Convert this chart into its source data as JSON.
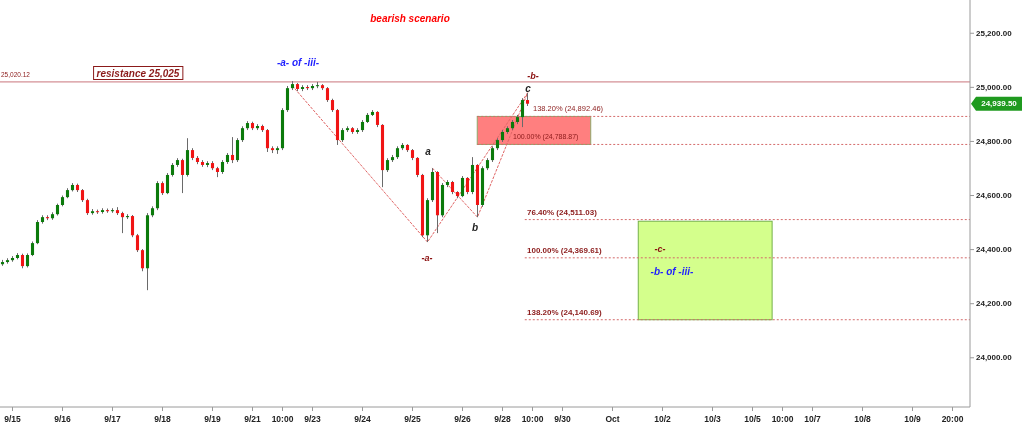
{
  "chart_data": {
    "type": "candlestick",
    "title": "bearish scenario",
    "categories": [
      null,
      null,
      "9/15",
      null,
      null,
      null,
      null,
      null,
      null,
      null,
      null,
      null,
      "9/16",
      null,
      null,
      null,
      null,
      null,
      null,
      null,
      null,
      null,
      "9/17",
      null,
      null,
      null,
      null,
      null,
      null,
      null,
      null,
      null,
      "9/18",
      null,
      null,
      null,
      null,
      null,
      null,
      null,
      null,
      null,
      "9/19",
      null,
      null,
      null,
      null,
      null,
      null,
      null,
      "9/21",
      null,
      null,
      null,
      null,
      null,
      "10:00",
      null,
      null,
      null,
      null,
      null,
      "9/23",
      null,
      null,
      null,
      null,
      null,
      null,
      null,
      null,
      null,
      "9/24",
      null,
      null,
      null,
      null,
      null,
      null,
      null,
      null,
      null,
      "9/25",
      null,
      null,
      null,
      null,
      null,
      null,
      null,
      null,
      null,
      "9/26",
      null,
      null,
      null,
      null,
      null,
      null,
      null,
      "9/28",
      null,
      null,
      null,
      null,
      null,
      "10:00",
      null,
      null,
      null,
      null,
      null,
      "9/30",
      null,
      null,
      null,
      null,
      null,
      null,
      null,
      null,
      null,
      "Oct",
      null,
      null,
      null,
      null,
      null,
      null,
      null,
      null,
      null,
      "10/2",
      null,
      null,
      null,
      null,
      null,
      null,
      null,
      null,
      null,
      "10/3",
      null,
      null,
      null,
      null,
      null,
      null,
      null,
      "10/5",
      null,
      null,
      null,
      null,
      null,
      "10:00",
      null,
      null,
      null,
      null,
      null,
      "10/7",
      null,
      null,
      null,
      null,
      null,
      null,
      null,
      null,
      null,
      "10/8",
      null,
      null,
      null,
      null,
      null,
      null,
      null,
      null,
      null,
      "10/9",
      null,
      null,
      null,
      null,
      null,
      null,
      null,
      "20:00",
      null,
      null,
      null
    ],
    "ohlc": [
      [
        24346,
        24362,
        24340,
        24354
      ],
      [
        24354,
        24368,
        24348,
        24361
      ],
      [
        24361,
        24376,
        24355,
        24369
      ],
      [
        24369,
        24387,
        24364,
        24380
      ],
      [
        24380,
        24385,
        24331,
        24339
      ],
      [
        24339,
        24386,
        24334,
        24380
      ],
      [
        24380,
        24430,
        24376,
        24424
      ],
      [
        24424,
        24509,
        24420,
        24502
      ],
      [
        24502,
        24527,
        24496,
        24520
      ],
      [
        24520,
        24527,
        24509,
        24516
      ],
      [
        24516,
        24538,
        24510,
        24531
      ],
      [
        24531,
        24570,
        24526,
        24565
      ],
      [
        24565,
        24600,
        24560,
        24594
      ],
      [
        24594,
        24627,
        24590,
        24620
      ],
      [
        24620,
        24646,
        24615,
        24639
      ],
      [
        24639,
        24644,
        24613,
        24620
      ],
      [
        24620,
        24624,
        24576,
        24583
      ],
      [
        24583,
        24588,
        24528,
        24535
      ],
      [
        24535,
        24550,
        24529,
        24542
      ],
      [
        24542,
        24548,
        24532,
        24539
      ],
      [
        24539,
        24553,
        24533,
        24546
      ],
      [
        24546,
        24552,
        24536,
        24542
      ],
      [
        24542,
        24553,
        24536,
        24546
      ],
      [
        24546,
        24557,
        24528,
        24535
      ],
      [
        24535,
        24540,
        24461,
        24520
      ],
      [
        24520,
        24531,
        24513,
        24524
      ],
      [
        24524,
        24528,
        24446,
        24453
      ],
      [
        24453,
        24458,
        24391,
        24398
      ],
      [
        24398,
        24402,
        24320,
        24331
      ],
      [
        24331,
        24535,
        24250,
        24527
      ],
      [
        24527,
        24560,
        24520,
        24553
      ],
      [
        24553,
        24653,
        24546,
        24646
      ],
      [
        24646,
        24652,
        24602,
        24609
      ],
      [
        24609,
        24683,
        24605,
        24676
      ],
      [
        24676,
        24720,
        24670,
        24713
      ],
      [
        24713,
        24738,
        24706,
        24731
      ],
      [
        24731,
        24736,
        24609,
        24676
      ],
      [
        24676,
        24812,
        24670,
        24768
      ],
      [
        24768,
        24775,
        24731,
        24739
      ],
      [
        24739,
        24746,
        24716,
        24724
      ],
      [
        24724,
        24731,
        24706,
        24713
      ],
      [
        24713,
        24727,
        24705,
        24720
      ],
      [
        24720,
        24727,
        24694,
        24701
      ],
      [
        24701,
        24706,
        24668,
        24687
      ],
      [
        24687,
        24731,
        24680,
        24724
      ],
      [
        24724,
        24757,
        24717,
        24750
      ],
      [
        24750,
        24816,
        24720,
        24731
      ],
      [
        24731,
        24812,
        24724,
        24805
      ],
      [
        24805,
        24856,
        24798,
        24849
      ],
      [
        24849,
        24875,
        24842,
        24868
      ],
      [
        24868,
        24873,
        24842,
        24849
      ],
      [
        24849,
        24864,
        24842,
        24857
      ],
      [
        24857,
        24862,
        24835,
        24842
      ],
      [
        24842,
        24846,
        24761,
        24775
      ],
      [
        24775,
        24782,
        24757,
        24768
      ],
      [
        24768,
        24782,
        24754,
        24775
      ],
      [
        24775,
        24923,
        24768,
        24916
      ],
      [
        24916,
        25005,
        24909,
        24997
      ],
      [
        24997,
        25023,
        24990,
        25012
      ],
      [
        25012,
        25016,
        24986,
        24994
      ],
      [
        24994,
        25008,
        24986,
        25001
      ],
      [
        25001,
        25008,
        24990,
        24997
      ],
      [
        24997,
        25012,
        24990,
        25005
      ],
      [
        25005,
        25020,
        24997,
        25008
      ],
      [
        25008,
        25012,
        24990,
        24997
      ],
      [
        24997,
        25001,
        24946,
        24953
      ],
      [
        24953,
        24958,
        24909,
        24916
      ],
      [
        24916,
        24920,
        24787,
        24805
      ],
      [
        24805,
        24849,
        24798,
        24842
      ],
      [
        24842,
        24856,
        24835,
        24849
      ],
      [
        24849,
        24853,
        24828,
        24835
      ],
      [
        24835,
        24849,
        24828,
        24842
      ],
      [
        24842,
        24879,
        24835,
        24872
      ],
      [
        24872,
        24905,
        24868,
        24898
      ],
      [
        24898,
        24916,
        24894,
        24909
      ],
      [
        24909,
        24912,
        24853,
        24861
      ],
      [
        24861,
        24864,
        24631,
        24694
      ],
      [
        24694,
        24738,
        24687,
        24731
      ],
      [
        24731,
        24750,
        24724,
        24742
      ],
      [
        24742,
        24782,
        24735,
        24775
      ],
      [
        24775,
        24794,
        24768,
        24787
      ],
      [
        24787,
        24790,
        24761,
        24768
      ],
      [
        24768,
        24772,
        24731,
        24739
      ],
      [
        24739,
        24742,
        24668,
        24676
      ],
      [
        24676,
        24680,
        24446,
        24453
      ],
      [
        24453,
        24590,
        24428,
        24583
      ],
      [
        24583,
        24701,
        24576,
        24687
      ],
      [
        24687,
        24690,
        24461,
        24527
      ],
      [
        24527,
        24646,
        24520,
        24639
      ],
      [
        24639,
        24657,
        24631,
        24650
      ],
      [
        24650,
        24654,
        24605,
        24613
      ],
      [
        24613,
        24616,
        24590,
        24598
      ],
      [
        24598,
        24672,
        24594,
        24665
      ],
      [
        24665,
        24668,
        24605,
        24613
      ],
      [
        24613,
        24742,
        24605,
        24713
      ],
      [
        24713,
        24716,
        24520,
        24565
      ],
      [
        24565,
        24708,
        24558,
        24701
      ],
      [
        24701,
        24738,
        24694,
        24731
      ],
      [
        24731,
        24782,
        24724,
        24775
      ],
      [
        24775,
        24812,
        24768,
        24805
      ],
      [
        24805,
        24842,
        24798,
        24835
      ],
      [
        24835,
        24856,
        24828,
        24849
      ],
      [
        24849,
        24879,
        24842,
        24872
      ],
      [
        24872,
        24898,
        24864,
        24890
      ],
      [
        24890,
        24960,
        24853,
        24953
      ],
      [
        24953,
        24979,
        24931,
        24939.5
      ],
      null,
      null,
      null,
      null,
      null,
      null,
      null,
      null,
      null,
      null,
      null,
      null,
      null,
      null,
      null,
      null,
      null,
      null,
      null,
      null,
      null,
      null,
      null,
      null,
      null,
      null,
      null,
      null,
      null,
      null,
      null,
      null,
      null,
      null,
      null,
      null,
      null,
      null,
      null,
      null,
      null,
      null,
      null,
      null,
      null,
      null,
      null,
      null,
      null,
      null,
      null,
      null,
      null,
      null,
      null,
      null,
      null,
      null,
      null,
      null,
      null,
      null,
      null,
      null,
      null,
      null,
      null,
      null,
      null,
      null,
      null,
      null,
      null,
      null,
      null,
      null,
      null,
      null,
      null,
      null,
      null,
      null,
      null,
      null,
      null,
      null,
      null,
      null
    ],
    "series": [
      {
        "type": "line",
        "color": "#e06666",
        "line_style": "dotted",
        "values": [
          null,
          null,
          null,
          null,
          null,
          null,
          null,
          null,
          null,
          null,
          null,
          null,
          null,
          null,
          null,
          null,
          null,
          null,
          null,
          null,
          null,
          null,
          null,
          null,
          null,
          null,
          null,
          null,
          null,
          null,
          null,
          null,
          null,
          null,
          null,
          null,
          null,
          null,
          null,
          null,
          null,
          null,
          null,
          null,
          null,
          null,
          null,
          null,
          null,
          null,
          null,
          null,
          null,
          null,
          null,
          null,
          null,
          null,
          25005,
          null,
          null,
          null,
          null,
          null,
          null,
          null,
          null,
          null,
          null,
          null,
          null,
          null,
          null,
          null,
          null,
          null,
          null,
          null,
          null,
          null,
          null,
          null,
          null,
          null,
          null,
          24428,
          null,
          null,
          null,
          null,
          null,
          null,
          null,
          null,
          null,
          null,
          null,
          null,
          null,
          null,
          null,
          null,
          null,
          null,
          null,
          24979,
          null,
          null,
          null,
          null,
          null,
          null,
          null,
          null,
          null,
          null,
          null,
          null,
          null,
          null,
          null,
          null,
          null,
          null,
          null,
          null,
          null,
          null,
          null,
          null,
          null,
          null,
          null,
          null,
          null,
          null,
          null,
          null,
          null,
          null,
          null,
          null,
          null,
          null,
          null,
          null,
          null,
          null,
          null,
          null,
          null,
          null,
          null,
          null,
          null,
          null,
          null,
          null,
          null,
          null,
          null,
          null,
          null,
          null,
          null,
          null,
          null,
          null,
          null,
          null,
          null,
          null,
          null,
          null,
          null,
          null,
          null,
          null,
          null,
          null,
          null,
          null,
          null,
          null,
          null,
          null,
          null,
          null,
          null,
          null,
          null,
          null,
          null,
          null
        ]
      },
      {
        "type": "line",
        "color": "#e06666",
        "line_style": "dotted",
        "values": [
          null,
          null,
          null,
          null,
          null,
          null,
          null,
          null,
          null,
          null,
          null,
          null,
          null,
          null,
          null,
          null,
          null,
          null,
          null,
          null,
          null,
          null,
          null,
          null,
          null,
          null,
          null,
          null,
          null,
          null,
          null,
          null,
          null,
          null,
          null,
          null,
          null,
          null,
          null,
          null,
          null,
          null,
          null,
          null,
          null,
          null,
          null,
          null,
          null,
          null,
          null,
          null,
          null,
          null,
          null,
          null,
          null,
          null,
          null,
          null,
          null,
          null,
          null,
          null,
          null,
          null,
          null,
          null,
          null,
          null,
          null,
          null,
          null,
          null,
          null,
          null,
          null,
          null,
          null,
          null,
          null,
          null,
          null,
          null,
          null,
          null,
          24701,
          null,
          null,
          null,
          null,
          null,
          null,
          null,
          null,
          24520,
          null,
          null,
          null,
          null,
          null,
          null,
          null,
          null,
          null,
          24979,
          null,
          null,
          null,
          null,
          null,
          null,
          null,
          null,
          null,
          null,
          null,
          null,
          null,
          null,
          null,
          null,
          null,
          null,
          null,
          null,
          null,
          null,
          null,
          null,
          null,
          null,
          null,
          null,
          null,
          null,
          null,
          null,
          null,
          null,
          null,
          null,
          null,
          null,
          null,
          null,
          null,
          null,
          null,
          null,
          null,
          null,
          null,
          null,
          null,
          null,
          null,
          null,
          null,
          null,
          null,
          null,
          null,
          null,
          null,
          null,
          null,
          null,
          null,
          null,
          null,
          null,
          null,
          null,
          null,
          null,
          null,
          null,
          null,
          null,
          null,
          null,
          null,
          null,
          null,
          null,
          null,
          null,
          null,
          null,
          null,
          null,
          null,
          null
        ]
      }
    ],
    "ylim": [
      23818,
      25323
    ],
    "yticks": [
      {
        "value": 24000,
        "label": "24,000.00"
      },
      {
        "value": 24200,
        "label": "24,200.00"
      },
      {
        "value": 24400,
        "label": "24,400.00"
      },
      {
        "value": 24600,
        "label": "24,600.00"
      },
      {
        "value": 24800,
        "label": "24,800.00"
      },
      {
        "value": 25000,
        "label": "25,000.00"
      },
      {
        "value": 25200,
        "label": "25,200.00"
      }
    ],
    "ref_lines": [
      {
        "axis": "y",
        "value": 25020.12,
        "label": "25,020.12",
        "color": "#c9757b"
      },
      {
        "axis": "y",
        "value": 24892.46,
        "label": "138.20% (24,892.46)",
        "color": "#d46a6a",
        "line_style": "dotted"
      },
      {
        "axis": "y",
        "value": 24788.87,
        "label": "100.00% (24,788.87)",
        "color": "#d46a6a",
        "line_style": "dotted"
      },
      {
        "axis": "y",
        "value": 24511.03,
        "label": "76.40% (24,511.03)",
        "color": "#d46a6a",
        "line_style": "dotted"
      },
      {
        "axis": "y",
        "value": 24369.61,
        "label": "100.00% (24,369.61)",
        "color": "#d46a6a",
        "line_style": "dotted"
      },
      {
        "axis": "y",
        "value": 24140.69,
        "label": "138.20% (24,140.69)",
        "color": "#d46a6a",
        "line_style": "dotted"
      }
    ],
    "bands": [
      {
        "axis": "y",
        "from": 24788.87,
        "to": 24892.46,
        "color": "#ff7f7f"
      },
      {
        "axis": "y",
        "from": 24140.69,
        "to": 24505,
        "color": "#d4ff8c"
      }
    ],
    "annotations": [
      "resistance 25,025",
      "-a- of -iii-",
      "-b-",
      "c",
      "a",
      "b",
      "-a-",
      "-c-",
      "-b- of -iii-",
      "24,939.50"
    ]
  }
}
